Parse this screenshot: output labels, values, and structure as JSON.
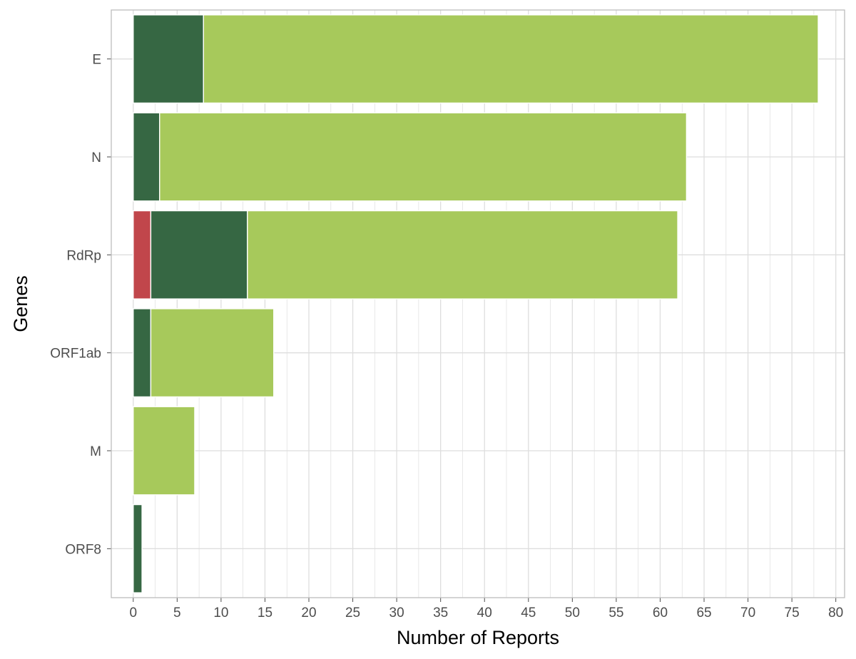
{
  "chart_data": {
    "type": "bar",
    "orientation": "horizontal",
    "stacked": true,
    "xlabel": "Number of Reports",
    "ylabel": "Genes",
    "xlim": [
      -2.5,
      81
    ],
    "x_ticks": [
      0,
      5,
      10,
      15,
      20,
      25,
      30,
      35,
      40,
      45,
      50,
      55,
      60,
      65,
      70,
      75,
      80
    ],
    "x_tick_labels": [
      "0",
      "5",
      "10",
      "15",
      "20",
      "25",
      "30",
      "35",
      "40",
      "45",
      "50",
      "55",
      "60",
      "65",
      "70",
      "75",
      "80"
    ],
    "categories": [
      "E",
      "N",
      "RdRp",
      "ORF1ab",
      "M",
      "ORF8"
    ],
    "series": [
      {
        "color": "#c1464b",
        "values": [
          0,
          0,
          2,
          0,
          0,
          0
        ]
      },
      {
        "color": "#366743",
        "values": [
          8,
          3,
          11,
          2,
          0,
          1
        ]
      },
      {
        "color": "#a7c95b",
        "values": [
          70,
          60,
          49,
          14,
          7,
          0
        ]
      }
    ],
    "grid": true,
    "legend": "none",
    "panel_border_color": "#bdbdbd",
    "grid_color": "#dedede",
    "bar_outline_color": "#ffffff"
  }
}
